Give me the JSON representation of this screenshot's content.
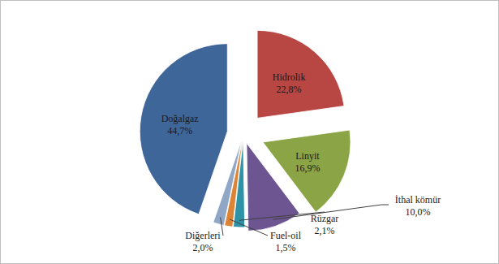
{
  "chart_data": {
    "type": "pie",
    "categories": [
      "Hidrolik",
      "Linyit",
      "İthal kömür",
      "Rüzgar",
      "Fuel-oil",
      "Diğerleri",
      "Doğalgaz"
    ],
    "values": [
      22.8,
      16.9,
      10.0,
      2.1,
      1.5,
      2.0,
      44.7
    ],
    "value_labels": [
      "22,8%",
      "16,9%",
      "10,0%",
      "2,1%",
      "1,5%",
      "2,0%",
      "44,7%"
    ],
    "colors": [
      "#b84744",
      "#8ba446",
      "#6d5592",
      "#2f93a8",
      "#dc8435",
      "#8fa6c6",
      "#3f6698"
    ],
    "data_labels": true
  }
}
